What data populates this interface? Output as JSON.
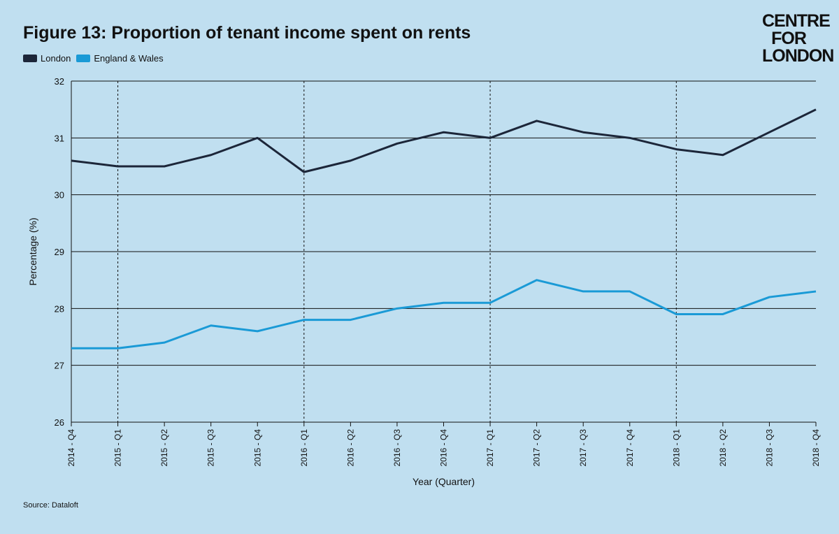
{
  "title": "Figure 13: Proportion of tenant income spent on rents",
  "logo": [
    "CENTRE",
    "FOR",
    "LONDON"
  ],
  "source": "Source: Dataloft",
  "colors": {
    "London": "#1c2639",
    "England & Wales": "#1a9ad6"
  },
  "chart_data": {
    "type": "line",
    "title": "Figure 13: Proportion of tenant income spent on rents",
    "xlabel": "Year (Quarter)",
    "ylabel": "Percentage (%)",
    "ylim": [
      26,
      32
    ],
    "yticks": [
      26,
      27,
      28,
      29,
      30,
      31,
      32
    ],
    "grid": "horizontal",
    "legend": "top-left",
    "x": [
      "2014 - Q4",
      "2015 - Q1",
      "2015 - Q2",
      "2015 - Q3",
      "2015 - Q4",
      "2016 - Q1",
      "2016 - Q2",
      "2016 - Q3",
      "2016 - Q4",
      "2017 - Q1",
      "2017 - Q2",
      "2017 - Q3",
      "2017 - Q4",
      "2018 - Q1",
      "2018 - Q2",
      "2018 - Q3",
      "2018 - Q4"
    ],
    "year_dividers": [
      "2015 - Q1",
      "2016 - Q1",
      "2017 - Q1",
      "2018 - Q1"
    ],
    "series": [
      {
        "name": "London",
        "values": [
          30.6,
          30.5,
          30.5,
          30.7,
          31.0,
          30.4,
          30.6,
          30.9,
          31.1,
          31.0,
          31.3,
          31.1,
          31.0,
          30.8,
          30.7,
          31.1,
          31.5
        ]
      },
      {
        "name": "England & Wales",
        "values": [
          27.3,
          27.3,
          27.4,
          27.7,
          27.6,
          27.8,
          27.8,
          28.0,
          28.1,
          28.1,
          28.5,
          28.3,
          28.3,
          27.9,
          27.9,
          28.2,
          28.3
        ]
      }
    ]
  }
}
